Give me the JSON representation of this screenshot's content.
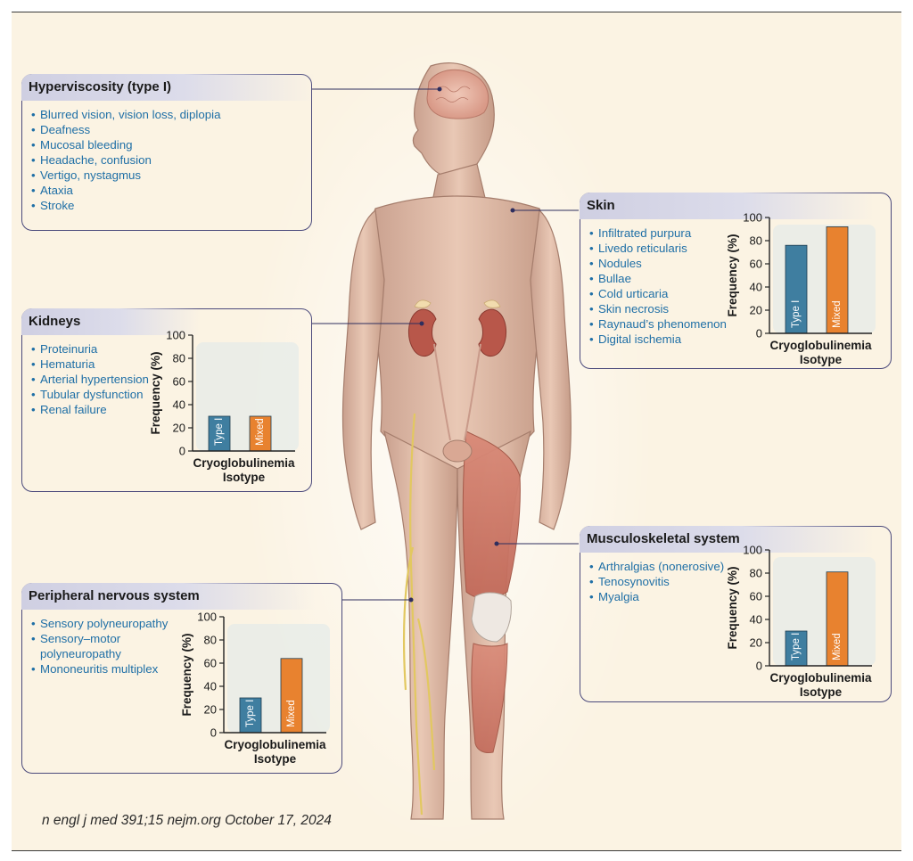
{
  "panels": {
    "hyperviscosity": {
      "title": "Hyperviscosity (type I)",
      "items": [
        "Blurred vision, vision loss, diplopia",
        "Deafness",
        "Mucosal bleeding",
        "Headache, confusion",
        "Vertigo, nystagmus",
        "Ataxia",
        "Stroke"
      ]
    },
    "skin": {
      "title": "Skin",
      "items": [
        "Infiltrated purpura",
        "Livedo reticularis",
        "Nodules",
        "Bullae",
        "Cold urticaria",
        "Skin necrosis",
        "Raynaud’s phenomenon",
        "Digital ischemia"
      ]
    },
    "kidneys": {
      "title": "Kidneys",
      "items": [
        "Proteinuria",
        "Hematuria",
        "Arterial hypertension",
        "Tubular dysfunction",
        "Renal failure"
      ]
    },
    "musculoskeletal": {
      "title": "Musculoskeletal system",
      "items": [
        "Arthralgias (nonerosive)",
        "Tenosynovitis",
        "Myalgia"
      ]
    },
    "nervous": {
      "title": "Peripheral nervous system",
      "items": [
        "Sensory polyneuropathy",
        "Sensory–motor",
        "polyneuropathy",
        "Mononeuritis multiplex"
      ]
    }
  },
  "colors": {
    "type1": "#3f7ea0",
    "mixed": "#e8822f",
    "panel_border": "#4b4a7c",
    "list_text": "#1f6fa6",
    "background": "#fbf3e3"
  },
  "citation": "n engl j med 391;15 nejm.org October 17, 2024",
  "chart_data": [
    {
      "id": "skin",
      "type": "bar",
      "categories": [
        "Type I",
        "Mixed"
      ],
      "values": [
        76,
        92
      ],
      "ylabel": "Frequency (%)",
      "xlabel": "Cryoglobulinemia Isotype",
      "ylim": [
        0,
        100
      ],
      "yticks": [
        "0",
        "20",
        "40",
        "60",
        "80",
        "100"
      ]
    },
    {
      "id": "kidneys",
      "type": "bar",
      "categories": [
        "Type I",
        "Mixed"
      ],
      "values": [
        30,
        30
      ],
      "ylabel": "Frequency (%)",
      "xlabel": "Cryoglobulinemia Isotype",
      "ylim": [
        0,
        100
      ],
      "yticks": [
        "0",
        "20",
        "40",
        "60",
        "80",
        "100"
      ]
    },
    {
      "id": "musculoskeletal",
      "type": "bar",
      "categories": [
        "Type I",
        "Mixed"
      ],
      "values": [
        30,
        81
      ],
      "ylabel": "Frequency (%)",
      "xlabel": "Cryoglobulinemia Isotype",
      "ylim": [
        0,
        100
      ],
      "yticks": [
        "0",
        "20",
        "40",
        "60",
        "80",
        "100"
      ]
    },
    {
      "id": "nervous",
      "type": "bar",
      "categories": [
        "Type I",
        "Mixed"
      ],
      "values": [
        30,
        64
      ],
      "ylabel": "Frequency (%)",
      "xlabel": "Cryoglobulinemia Isotype",
      "ylim": [
        0,
        100
      ],
      "yticks": [
        "0",
        "20",
        "40",
        "60",
        "80",
        "100"
      ]
    }
  ]
}
